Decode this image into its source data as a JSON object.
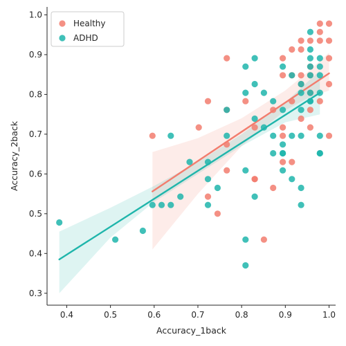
{
  "chart_data": {
    "type": "scatter",
    "title": "",
    "xlabel": "Accuracy_1back",
    "ylabel": "Accuracy_2back",
    "xlim": [
      0.355,
      1.015
    ],
    "ylim": [
      0.27,
      1.02
    ],
    "xticks": [
      0.4,
      0.5,
      0.6,
      0.7,
      0.8,
      0.9,
      1.0
    ],
    "xtick_labels": [
      "0.4",
      "0.5",
      "0.6",
      "0.7",
      "0.8",
      "0.9",
      "1.0"
    ],
    "yticks": [
      0.3,
      0.4,
      0.5,
      0.6,
      0.7,
      0.8,
      0.9,
      1.0
    ],
    "ytick_labels": [
      "0.3",
      "0.4",
      "0.5",
      "0.6",
      "0.7",
      "0.8",
      "0.9",
      "1.0"
    ],
    "grid": false,
    "legend_position": "top-left",
    "series": [
      {
        "name": "Healthy",
        "color": "#f27d6e",
        "points": [
          [
            0.596,
            0.696
          ],
          [
            0.702,
            0.717
          ],
          [
            0.723,
            0.783
          ],
          [
            0.723,
            0.543
          ],
          [
            0.745,
            0.5
          ],
          [
            0.766,
            0.891
          ],
          [
            0.766,
            0.761
          ],
          [
            0.766,
            0.674
          ],
          [
            0.766,
            0.609
          ],
          [
            0.809,
            0.783
          ],
          [
            0.83,
            0.717
          ],
          [
            0.83,
            0.587
          ],
          [
            0.83,
            0.587
          ],
          [
            0.851,
            0.435
          ],
          [
            0.872,
            0.761
          ],
          [
            0.872,
            0.565
          ],
          [
            0.894,
            0.891
          ],
          [
            0.894,
            0.848
          ],
          [
            0.894,
            0.717
          ],
          [
            0.894,
            0.696
          ],
          [
            0.894,
            0.63
          ],
          [
            0.915,
            0.913
          ],
          [
            0.915,
            0.848
          ],
          [
            0.915,
            0.783
          ],
          [
            0.915,
            0.63
          ],
          [
            0.936,
            0.935
          ],
          [
            0.936,
            0.913
          ],
          [
            0.936,
            0.848
          ],
          [
            0.936,
            0.826
          ],
          [
            0.936,
            0.739
          ],
          [
            0.957,
            0.935
          ],
          [
            0.957,
            0.87
          ],
          [
            0.957,
            0.848
          ],
          [
            0.957,
            0.804
          ],
          [
            0.957,
            0.761
          ],
          [
            0.957,
            0.717
          ],
          [
            0.979,
            0.978
          ],
          [
            0.979,
            0.957
          ],
          [
            0.979,
            0.935
          ],
          [
            0.979,
            0.783
          ],
          [
            1.0,
            0.978
          ],
          [
            1.0,
            0.935
          ],
          [
            1.0,
            0.891
          ],
          [
            1.0,
            0.826
          ],
          [
            1.0,
            0.696
          ]
        ],
        "regression": {
          "x": [
            0.596,
            1.0
          ],
          "y": [
            0.556,
            0.853
          ]
        },
        "ci_band": {
          "x": [
            0.596,
            0.7,
            0.8,
            0.9,
            0.95,
            1.0
          ],
          "lower": [
            0.41,
            0.55,
            0.67,
            0.76,
            0.79,
            0.81
          ],
          "upper": [
            0.655,
            0.69,
            0.74,
            0.81,
            0.855,
            0.905
          ]
        }
      },
      {
        "name": "ADHD",
        "color": "#1fb5ab",
        "points": [
          [
            0.383,
            0.478
          ],
          [
            0.511,
            0.435
          ],
          [
            0.574,
            0.457
          ],
          [
            0.596,
            0.522
          ],
          [
            0.617,
            0.522
          ],
          [
            0.638,
            0.696
          ],
          [
            0.638,
            0.522
          ],
          [
            0.66,
            0.543
          ],
          [
            0.681,
            0.63
          ],
          [
            0.723,
            0.63
          ],
          [
            0.723,
            0.587
          ],
          [
            0.723,
            0.522
          ],
          [
            0.745,
            0.565
          ],
          [
            0.766,
            0.761
          ],
          [
            0.766,
            0.696
          ],
          [
            0.809,
            0.87
          ],
          [
            0.809,
            0.804
          ],
          [
            0.809,
            0.609
          ],
          [
            0.809,
            0.435
          ],
          [
            0.809,
            0.37
          ],
          [
            0.83,
            0.891
          ],
          [
            0.83,
            0.826
          ],
          [
            0.83,
            0.739
          ],
          [
            0.83,
            0.543
          ],
          [
            0.851,
            0.804
          ],
          [
            0.851,
            0.717
          ],
          [
            0.872,
            0.783
          ],
          [
            0.872,
            0.696
          ],
          [
            0.872,
            0.652
          ],
          [
            0.894,
            0.87
          ],
          [
            0.894,
            0.761
          ],
          [
            0.894,
            0.674
          ],
          [
            0.894,
            0.652
          ],
          [
            0.894,
            0.652
          ],
          [
            0.894,
            0.609
          ],
          [
            0.915,
            0.848
          ],
          [
            0.915,
            0.696
          ],
          [
            0.915,
            0.587
          ],
          [
            0.936,
            0.826
          ],
          [
            0.936,
            0.804
          ],
          [
            0.936,
            0.761
          ],
          [
            0.936,
            0.696
          ],
          [
            0.936,
            0.565
          ],
          [
            0.936,
            0.522
          ],
          [
            0.957,
            0.957
          ],
          [
            0.957,
            0.913
          ],
          [
            0.957,
            0.891
          ],
          [
            0.957,
            0.87
          ],
          [
            0.957,
            0.848
          ],
          [
            0.957,
            0.804
          ],
          [
            0.957,
            0.783
          ],
          [
            0.957,
            0.783
          ],
          [
            0.979,
            0.891
          ],
          [
            0.979,
            0.87
          ],
          [
            0.979,
            0.848
          ],
          [
            0.979,
            0.804
          ],
          [
            0.979,
            0.696
          ],
          [
            0.979,
            0.652
          ],
          [
            0.979,
            0.652
          ]
        ],
        "regression": {
          "x": [
            0.383,
            0.979
          ],
          "y": [
            0.385,
            0.804
          ]
        },
        "ci_band": {
          "x": [
            0.383,
            0.5,
            0.6,
            0.7,
            0.8,
            0.9,
            0.979
          ],
          "lower": [
            0.3,
            0.44,
            0.53,
            0.6,
            0.67,
            0.73,
            0.75
          ],
          "upper": [
            0.455,
            0.515,
            0.57,
            0.63,
            0.7,
            0.78,
            0.86
          ]
        }
      }
    ]
  }
}
